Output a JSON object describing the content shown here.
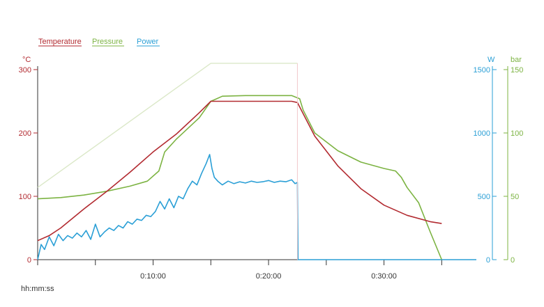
{
  "legend": {
    "temperature": "Temperature",
    "pressure": "Pressure",
    "power": "Power"
  },
  "colors": {
    "temperature": "#b22a30",
    "pressure": "#7cb342",
    "power": "#2a9fd6",
    "pressure_setpoint": "#dbe8c8",
    "axis": "#333333"
  },
  "axes": {
    "left_unit": "°C",
    "right_unit_power": "W",
    "right_unit_pressure": "bar",
    "x_label": "hh:mm:ss"
  },
  "chart_data": {
    "type": "line",
    "title": "",
    "xlabel": "hh:mm:ss",
    "ylabel": "°C",
    "x_unit": "minutes",
    "xlim": [
      0,
      38
    ],
    "x_ticks": [
      {
        "value": 0,
        "label": ""
      },
      {
        "value": 5,
        "label": ""
      },
      {
        "value": 10,
        "label": "0:10:00"
      },
      {
        "value": 15,
        "label": ""
      },
      {
        "value": 20,
        "label": "0:20:00"
      },
      {
        "value": 25,
        "label": ""
      },
      {
        "value": 30,
        "label": "0:30:00"
      },
      {
        "value": 35,
        "label": ""
      }
    ],
    "y_left": {
      "unit": "°C",
      "range": [
        0,
        300
      ],
      "ticks": [
        0,
        100,
        200,
        300
      ]
    },
    "y_right_power": {
      "unit": "W",
      "range": [
        0,
        1500
      ],
      "ticks": [
        0,
        500,
        1000,
        1500
      ]
    },
    "y_right_pressure": {
      "unit": "bar",
      "range": [
        0,
        150
      ],
      "ticks": [
        0,
        50,
        100,
        150
      ]
    },
    "legend_position": "top-left",
    "series": [
      {
        "name": "Temperature",
        "axis": "left",
        "color": "#b22a30",
        "x": [
          0,
          1,
          2,
          4,
          6,
          8,
          10,
          12,
          14,
          15,
          16,
          18,
          20,
          22,
          22.5,
          24,
          26,
          28,
          30,
          32,
          34,
          35
        ],
        "y": [
          30,
          38,
          50,
          80,
          108,
          138,
          170,
          198,
          232,
          250,
          250,
          250,
          250,
          250,
          248,
          195,
          148,
          112,
          86,
          70,
          60,
          57
        ]
      },
      {
        "name": "Pressure",
        "axis": "pressure",
        "color": "#7cb342",
        "x": [
          0,
          2,
          4,
          6,
          8,
          9.5,
          10.5,
          11,
          12,
          14,
          15,
          15.5,
          16,
          18,
          20,
          22,
          22.7,
          23,
          24,
          26,
          28,
          30,
          31,
          31.5,
          32,
          33,
          34,
          35
        ],
        "y": [
          48,
          49,
          51,
          54,
          58,
          62,
          70,
          85,
          95,
          112,
          125,
          127,
          129,
          129.5,
          129.5,
          129.5,
          127,
          118,
          100,
          86,
          77,
          72,
          70,
          65,
          57,
          45,
          22,
          0
        ]
      },
      {
        "name": "Power",
        "axis": "power",
        "color": "#2a9fd6",
        "x": [
          0,
          0.3,
          0.6,
          1,
          1.4,
          1.8,
          2.2,
          2.6,
          3,
          3.4,
          3.8,
          4.2,
          4.6,
          5,
          5.4,
          5.8,
          6.2,
          6.6,
          7,
          7.4,
          7.8,
          8.2,
          8.6,
          9,
          9.4,
          9.8,
          10.2,
          10.6,
          11,
          11.4,
          11.8,
          12.2,
          12.6,
          13,
          13.4,
          13.8,
          14.2,
          14.6,
          14.9,
          15.1,
          15.3,
          15.6,
          16,
          16.5,
          17,
          17.5,
          18,
          18.5,
          19,
          19.5,
          20,
          20.5,
          21,
          21.5,
          22,
          22.3,
          22.5,
          22.55,
          22.6,
          24,
          26,
          28,
          30,
          32,
          34,
          35
        ],
        "y": [
          0,
          120,
          80,
          180,
          110,
          200,
          150,
          190,
          170,
          210,
          180,
          230,
          160,
          280,
          180,
          220,
          250,
          230,
          270,
          250,
          300,
          280,
          320,
          310,
          350,
          340,
          380,
          460,
          400,
          480,
          410,
          500,
          480,
          560,
          620,
          590,
          680,
          760,
          830,
          720,
          650,
          620,
          590,
          620,
          600,
          615,
          605,
          620,
          610,
          615,
          625,
          610,
          620,
          615,
          630,
          600,
          610,
          0,
          0,
          0,
          0,
          0,
          0,
          0,
          0,
          0
        ]
      },
      {
        "name": "",
        "axis": "pressure",
        "color": "#dbe8c8",
        "x": [
          0,
          15,
          22.5
        ],
        "y": [
          57,
          155,
          155
        ]
      }
    ]
  }
}
